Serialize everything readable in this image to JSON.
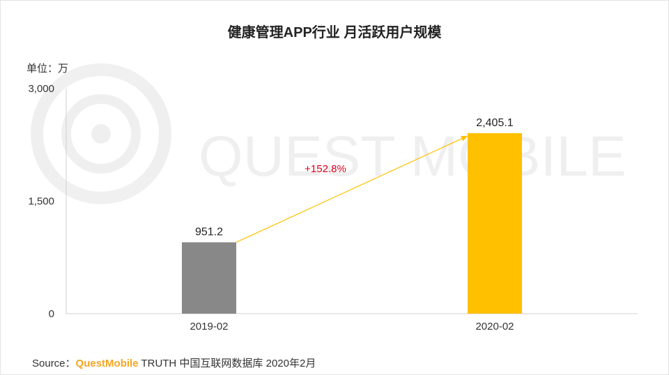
{
  "chart_data": {
    "type": "bar",
    "title": "健康管理APP行业 月活跃用户规模",
    "unit_label": "单位：万",
    "categories": [
      "2019-02",
      "2020-02"
    ],
    "values": [
      951.2,
      2405.1
    ],
    "value_labels": [
      "951.2",
      "2,405.1"
    ],
    "bar_colors": [
      "#888888",
      "#ffc000"
    ],
    "ylim": [
      0,
      3000
    ],
    "yticks": [
      0,
      1500,
      3000
    ],
    "ytick_labels": [
      "0",
      "1,500",
      "3,000"
    ],
    "grid": false,
    "annotation": {
      "text": "+152.8%",
      "color": "#e0001a",
      "arrow_color": "#ffc000"
    }
  },
  "watermark": {
    "text": "QUEST MOBILE"
  },
  "source": {
    "prefix": "Source：",
    "brand": "QuestMobile",
    "rest": " TRUTH 中国互联网数据库 2020年2月"
  }
}
